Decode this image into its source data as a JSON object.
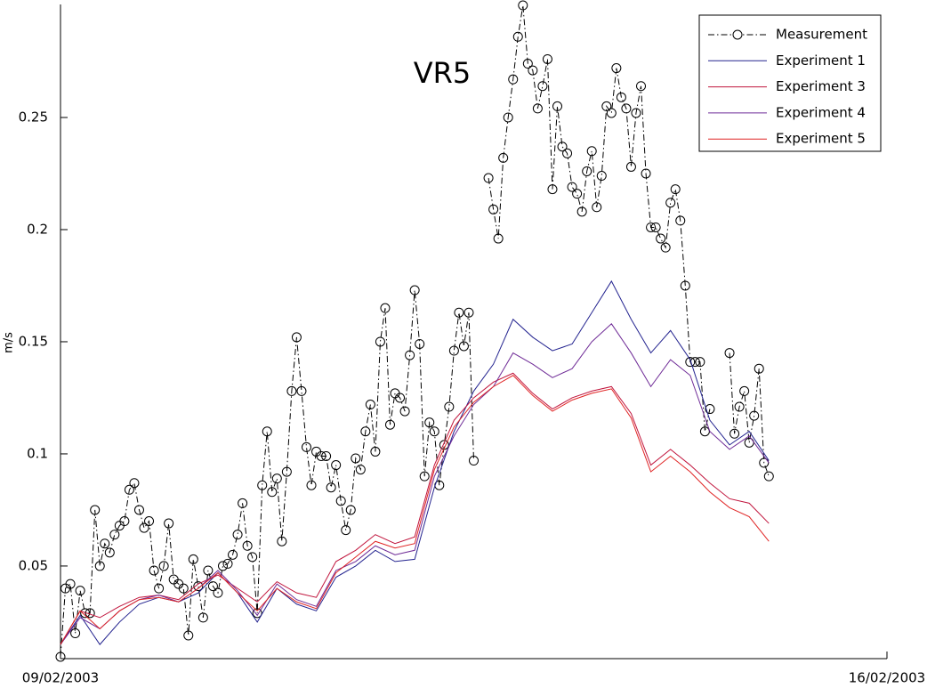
{
  "chart_data": {
    "type": "line",
    "title": "VR5",
    "y_label": "m/s",
    "xlim": [
      0,
      168
    ],
    "xticks": [
      {
        "value": 0,
        "label": "09/02/2003"
      },
      {
        "value": 168,
        "label": "16/02/2003"
      }
    ],
    "ylim": [
      0.0087,
      0.3004
    ],
    "yticks": [
      0.05,
      0.1,
      0.15,
      0.2,
      0.25
    ],
    "grid": false,
    "legend": "upper right",
    "series": [
      {
        "name": "Measurement",
        "color": "#000000",
        "linestyle": "-.",
        "marker": "o",
        "x": [
          0,
          1,
          2,
          3,
          4,
          5,
          6,
          7,
          8,
          9,
          10,
          11,
          12,
          13,
          14,
          15,
          16,
          17,
          18,
          19,
          20,
          21,
          22,
          23,
          24,
          25,
          26,
          27,
          28,
          29,
          30,
          31,
          32,
          33,
          34,
          35,
          36,
          37,
          38,
          39,
          40,
          41,
          42,
          43,
          44,
          45,
          46,
          47,
          48,
          49,
          50,
          51,
          52,
          53,
          54,
          55,
          56,
          57,
          58,
          59,
          60,
          61,
          62,
          63,
          64,
          65,
          66,
          67,
          68,
          69,
          70,
          71,
          72,
          73,
          74,
          75,
          76,
          77,
          78,
          79,
          80,
          81,
          82,
          83,
          84,
          85,
          86,
          87,
          88,
          89,
          90,
          91,
          92,
          93,
          94,
          95,
          96,
          97,
          98,
          99,
          100,
          101,
          102,
          103,
          104,
          105,
          106,
          107,
          108,
          109,
          110,
          111,
          112,
          113,
          114,
          115,
          116,
          117,
          118,
          119,
          120,
          121,
          122,
          123,
          124,
          125,
          126,
          127,
          128,
          129,
          130,
          131,
          132,
          133,
          134,
          135,
          136,
          137,
          138,
          139,
          140,
          141,
          142,
          143,
          144
        ],
        "values": [
          0.0095,
          0.04,
          0.042,
          0.02,
          0.039,
          0.029,
          0.029,
          0.075,
          0.05,
          0.06,
          0.056,
          0.064,
          0.068,
          0.07,
          0.084,
          0.087,
          0.075,
          0.067,
          0.07,
          0.048,
          0.04,
          0.05,
          0.069,
          0.044,
          0.042,
          0.04,
          0.019,
          0.053,
          0.041,
          0.027,
          0.048,
          0.041,
          0.038,
          0.05,
          0.051,
          0.055,
          0.064,
          0.078,
          0.059,
          0.054,
          0.029,
          0.086,
          0.11,
          0.083,
          0.089,
          0.061,
          0.092,
          0.128,
          0.152,
          0.128,
          0.103,
          0.086,
          0.101,
          0.099,
          0.099,
          0.085,
          0.095,
          0.079,
          0.066,
          0.075,
          0.098,
          0.093,
          0.11,
          0.122,
          0.101,
          0.15,
          0.165,
          0.113,
          0.127,
          0.125,
          0.119,
          0.144,
          0.173,
          0.149,
          0.09,
          0.114,
          0.11,
          0.086,
          0.104,
          0.121,
          0.146,
          0.163,
          0.148,
          0.163,
          0.097,
          null,
          null,
          0.223,
          0.209,
          0.196,
          0.232,
          0.25,
          0.267,
          0.286,
          0.3,
          0.274,
          0.271,
          0.254,
          0.264,
          0.276,
          0.218,
          0.255,
          0.237,
          0.234,
          0.219,
          0.216,
          0.208,
          0.226,
          0.235,
          0.21,
          0.224,
          0.255,
          0.252,
          0.272,
          0.259,
          0.254,
          0.228,
          0.252,
          0.264,
          0.225,
          0.201,
          0.201,
          0.196,
          0.192,
          0.212,
          0.218,
          0.204,
          0.175,
          0.141,
          0.141,
          0.141,
          0.11,
          0.12,
          null,
          null,
          null,
          0.145,
          0.109,
          0.121,
          0.128,
          0.105,
          0.117,
          0.138,
          0.096,
          0.09
        ]
      },
      {
        "name": "Experiment 1",
        "color": "#23238f",
        "x": [
          0,
          4,
          8,
          12,
          16,
          20,
          24,
          28,
          32,
          36,
          40,
          44,
          48,
          52,
          56,
          60,
          64,
          68,
          72,
          76,
          80,
          84,
          88,
          92,
          96,
          100,
          104,
          108,
          112,
          116,
          120,
          124,
          128,
          132,
          136,
          140,
          144
        ],
        "values": [
          0.015,
          0.028,
          0.015,
          0.025,
          0.033,
          0.036,
          0.034,
          0.038,
          0.047,
          0.038,
          0.025,
          0.04,
          0.033,
          0.03,
          0.045,
          0.05,
          0.057,
          0.052,
          0.053,
          0.085,
          0.11,
          0.128,
          0.14,
          0.16,
          0.152,
          0.146,
          0.149,
          0.163,
          0.177,
          0.16,
          0.145,
          0.155,
          0.142,
          0.115,
          0.104,
          0.11,
          0.097
        ]
      },
      {
        "name": "Experiment 3",
        "color": "#c0143c",
        "x": [
          0,
          4,
          8,
          12,
          16,
          20,
          24,
          28,
          32,
          36,
          40,
          44,
          48,
          52,
          56,
          60,
          64,
          68,
          72,
          76,
          80,
          84,
          88,
          92,
          96,
          100,
          104,
          108,
          112,
          116,
          120,
          124,
          128,
          132,
          136,
          140,
          144
        ],
        "values": [
          0.015,
          0.03,
          0.027,
          0.032,
          0.036,
          0.037,
          0.035,
          0.042,
          0.046,
          0.04,
          0.034,
          0.043,
          0.038,
          0.036,
          0.052,
          0.057,
          0.064,
          0.06,
          0.063,
          0.095,
          0.115,
          0.125,
          0.132,
          0.136,
          0.127,
          0.12,
          0.125,
          0.128,
          0.13,
          0.118,
          0.095,
          0.102,
          0.095,
          0.087,
          0.08,
          0.078,
          0.069
        ]
      },
      {
        "name": "Experiment 4",
        "color": "#6e2a96",
        "x": [
          0,
          4,
          8,
          12,
          16,
          20,
          24,
          28,
          32,
          36,
          40,
          44,
          48,
          52,
          56,
          60,
          64,
          68,
          72,
          76,
          80,
          84,
          88,
          92,
          96,
          100,
          104,
          108,
          112,
          116,
          120,
          124,
          128,
          132,
          136,
          140,
          144
        ],
        "values": [
          0.015,
          0.027,
          0.022,
          0.03,
          0.035,
          0.037,
          0.034,
          0.04,
          0.048,
          0.039,
          0.028,
          0.042,
          0.035,
          0.032,
          0.048,
          0.052,
          0.059,
          0.055,
          0.057,
          0.09,
          0.108,
          0.122,
          0.13,
          0.145,
          0.14,
          0.134,
          0.138,
          0.15,
          0.158,
          0.145,
          0.13,
          0.142,
          0.135,
          0.11,
          0.102,
          0.108,
          0.096
        ]
      },
      {
        "name": "Experiment 5",
        "color": "#e02424",
        "x": [
          0,
          4,
          8,
          12,
          16,
          20,
          24,
          28,
          32,
          36,
          40,
          44,
          48,
          52,
          56,
          60,
          64,
          68,
          72,
          76,
          80,
          84,
          88,
          92,
          96,
          100,
          104,
          108,
          112,
          116,
          120,
          124,
          128,
          132,
          136,
          140,
          144
        ],
        "values": [
          0.015,
          0.03,
          0.022,
          0.03,
          0.035,
          0.036,
          0.034,
          0.04,
          0.047,
          0.038,
          0.03,
          0.04,
          0.034,
          0.031,
          0.047,
          0.054,
          0.061,
          0.058,
          0.06,
          0.093,
          0.112,
          0.123,
          0.13,
          0.135,
          0.126,
          0.119,
          0.124,
          0.127,
          0.129,
          0.116,
          0.092,
          0.099,
          0.092,
          0.083,
          0.076,
          0.072,
          0.061
        ]
      }
    ]
  }
}
